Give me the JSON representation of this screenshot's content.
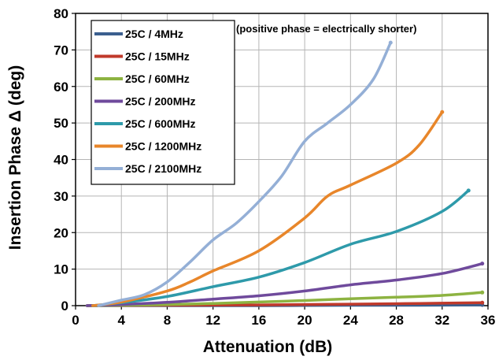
{
  "chart_data": {
    "type": "line",
    "xlabel": "Attenuation (dB)",
    "ylabel": "Insertion Phase Δ (deg)",
    "xlim": [
      0,
      36
    ],
    "ylim": [
      0,
      80
    ],
    "xticks": [
      "0",
      "4",
      "8",
      "12",
      "16",
      "20",
      "24",
      "28",
      "32",
      "36"
    ],
    "yticks": [
      "0",
      "10",
      "20",
      "30",
      "40",
      "50",
      "60",
      "70",
      "80"
    ],
    "grid": true,
    "legend_position": "top-left",
    "annotation": "(positive phase = electrically shorter)",
    "series": [
      {
        "name": "25C /  4MHz",
        "color": "#3b5f8f",
        "x": [
          1,
          8,
          16,
          24,
          30,
          35.5
        ],
        "y": [
          0,
          0,
          0,
          0.1,
          0.1,
          0.2
        ]
      },
      {
        "name": "25C /  15MHz",
        "color": "#c0392b",
        "x": [
          1,
          8,
          16,
          24,
          30,
          35.5
        ],
        "y": [
          0,
          0.1,
          0.2,
          0.4,
          0.6,
          0.8
        ]
      },
      {
        "name": "25C /  60MHz",
        "color": "#8db341",
        "x": [
          1,
          4,
          8,
          12,
          16,
          20,
          24,
          28,
          32,
          35.5
        ],
        "y": [
          0,
          0.1,
          0.3,
          0.6,
          1.0,
          1.4,
          1.9,
          2.3,
          2.8,
          3.6
        ]
      },
      {
        "name": "25C /  200MHz",
        "color": "#6f4a9c",
        "x": [
          1,
          4,
          8,
          12,
          16,
          20,
          24,
          28,
          32,
          35.5
        ],
        "y": [
          0,
          0.3,
          0.9,
          1.8,
          2.7,
          4.0,
          5.7,
          7.0,
          8.8,
          11.5
        ]
      },
      {
        "name": "25C /  600MHz",
        "color": "#2e9aaa",
        "x": [
          1.5,
          4,
          8,
          12,
          16,
          20,
          24,
          28,
          32,
          34.3
        ],
        "y": [
          0,
          0.8,
          2.5,
          5.2,
          7.8,
          11.8,
          16.8,
          20.3,
          25.8,
          31.5
        ]
      },
      {
        "name": "25C /  1200MHz",
        "color": "#e8862a",
        "x": [
          1.5,
          4,
          8,
          10,
          12,
          16,
          20,
          22,
          24,
          28,
          30,
          32
        ],
        "y": [
          0,
          1.0,
          4.0,
          6.5,
          9.5,
          15.0,
          24.0,
          30.0,
          33.0,
          39.0,
          44.0,
          53.0
        ]
      },
      {
        "name": "25C /  2100MHz",
        "color": "#94afd6",
        "x": [
          2,
          4,
          6,
          8,
          10,
          12,
          14,
          16,
          18,
          20,
          22,
          24,
          26,
          27.5
        ],
        "y": [
          0,
          1.5,
          3.0,
          6.5,
          12.0,
          18.0,
          22.5,
          28.5,
          35.5,
          45.0,
          50.0,
          55.0,
          62.0,
          72.0
        ]
      }
    ]
  }
}
